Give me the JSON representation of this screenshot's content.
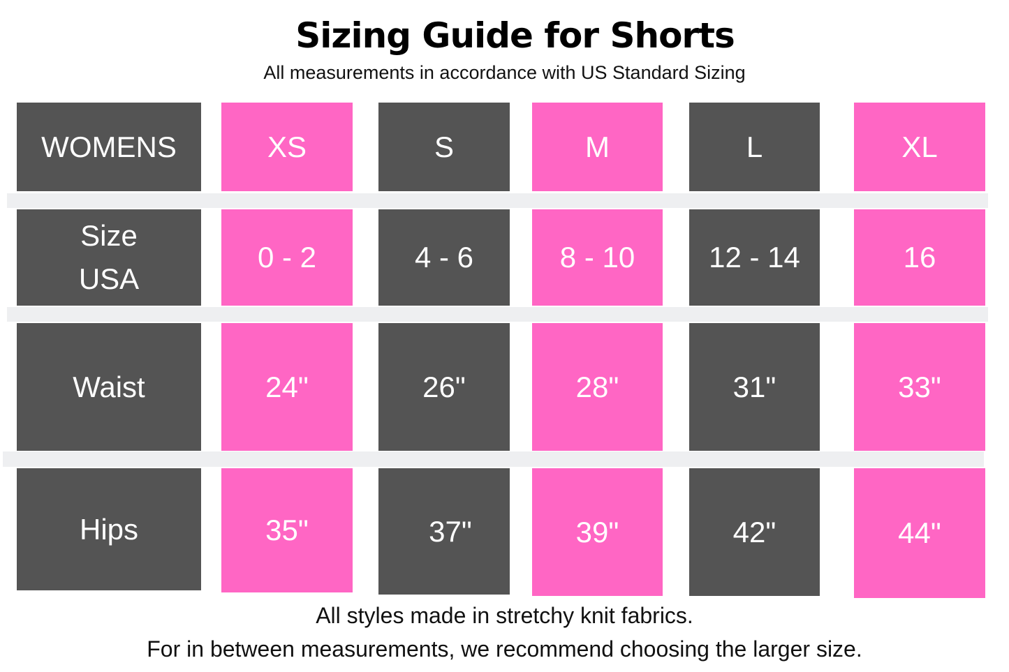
{
  "title": "Sizing Guide for Shorts",
  "subtitle": "All measurements in accordance with US Standard Sizing",
  "colors": {
    "dark": "#545454",
    "pink": "#ff66c4",
    "divider": "#eeeff1"
  },
  "table": {
    "header": [
      "WOMENS",
      "XS",
      "S",
      "M",
      "L",
      "XL"
    ],
    "rows": [
      {
        "label_line1": "Size",
        "label_line2": "USA",
        "values": [
          "0 - 2",
          "4 - 6",
          "8 - 10",
          "12 - 14",
          "16"
        ]
      },
      {
        "label": "Waist",
        "values": [
          "24\"",
          "26\"",
          "28\"",
          "31\"",
          "33\""
        ]
      },
      {
        "label": "Hips",
        "values": [
          "35\"",
          "37\"",
          "39\"",
          "42\"",
          "44\""
        ]
      }
    ]
  },
  "footer": {
    "line1": "All styles made in stretchy knit fabrics.",
    "line2": "For in between measurements, we recommend choosing the larger size."
  }
}
